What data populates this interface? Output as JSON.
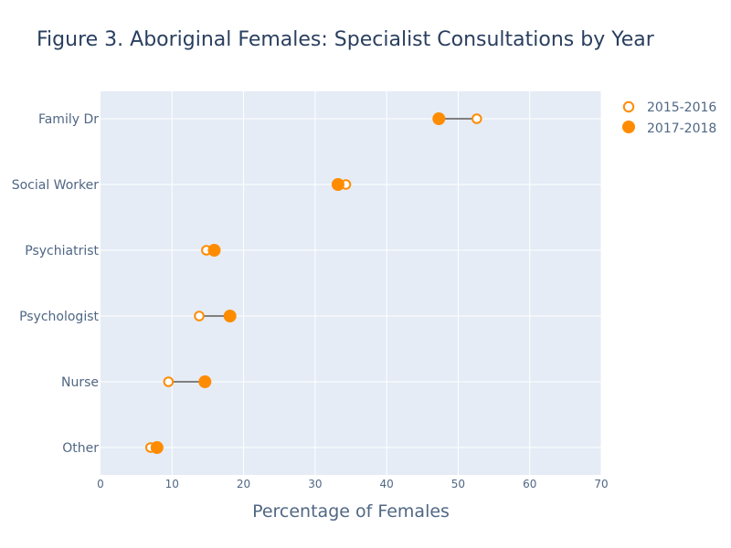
{
  "chart_data": {
    "type": "scatter",
    "title": "Figure 3. Aboriginal Females: Specialist Consultations by Year",
    "xlabel": "Percentage of Females",
    "ylabel": "",
    "xlim": [
      0,
      70
    ],
    "x_ticks": [
      "0",
      "10",
      "20",
      "30",
      "40",
      "50",
      "60",
      "70"
    ],
    "grid": true,
    "legend_position": "top-right",
    "categories": [
      "Family Dr",
      "Social Worker",
      "Psychiatrist",
      "Psychologist",
      "Nurse",
      "Other"
    ],
    "series": [
      {
        "name": "2015-2016",
        "marker": "open-circle",
        "color": "#ff8c00",
        "values": [
          52.6,
          34.3,
          14.8,
          13.8,
          9.5,
          7.0
        ]
      },
      {
        "name": "2017-2018",
        "marker": "filled-circle",
        "color": "#ff8c00",
        "values": [
          47.3,
          33.2,
          15.9,
          18.1,
          14.6,
          7.9
        ]
      }
    ],
    "connector_color": "#808080",
    "plot_background": "#e5ecf6"
  }
}
